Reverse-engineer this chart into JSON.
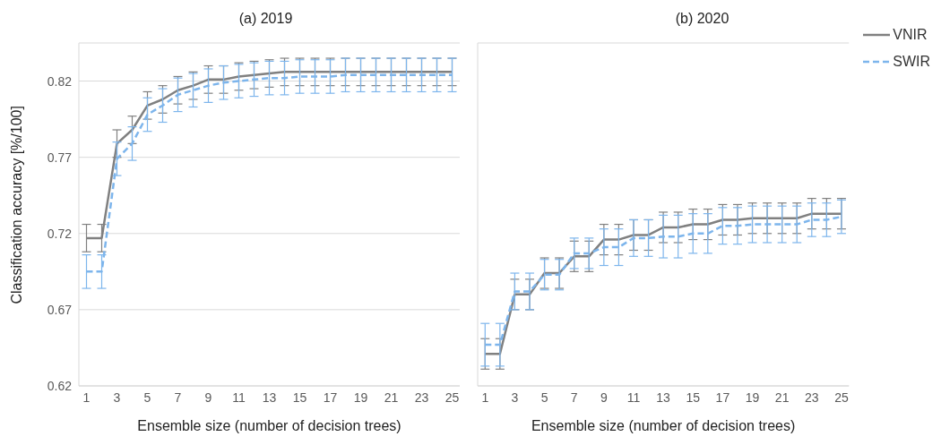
{
  "chart_data": [
    {
      "type": "line",
      "title": "(a) 2019",
      "xlabel": "Ensemble size (number of decision trees)",
      "ylabel": "Classification accuracy [%/100]",
      "x": [
        1,
        2,
        3,
        4,
        5,
        6,
        7,
        8,
        9,
        10,
        11,
        12,
        13,
        14,
        15,
        16,
        17,
        18,
        19,
        20,
        21,
        22,
        23,
        24,
        25
      ],
      "xlim": [
        0.5,
        25.5
      ],
      "xticks": [
        1,
        3,
        5,
        7,
        9,
        11,
        13,
        15,
        17,
        19,
        21,
        23,
        25
      ],
      "ylim": [
        0.62,
        0.845
      ],
      "yticks": [
        0.62,
        0.67,
        0.72,
        0.77,
        0.82
      ],
      "grid": "y",
      "legend": false,
      "marker": "none",
      "series": [
        {
          "color": "#808080",
          "line_style": "solid",
          "values": [
            0.717,
            0.717,
            0.779,
            0.788,
            0.804,
            0.808,
            0.814,
            0.817,
            0.821,
            0.821,
            0.823,
            0.824,
            0.825,
            0.826,
            0.826,
            0.826,
            0.826,
            0.826,
            0.826,
            0.826,
            0.826,
            0.826,
            0.826,
            0.826,
            0.826
          ],
          "errors": [
            0.009,
            0.009,
            0.009,
            0.009,
            0.009,
            0.009,
            0.009,
            0.009,
            0.009,
            0.009,
            0.009,
            0.009,
            0.009,
            0.009,
            0.009,
            0.009,
            0.009,
            0.009,
            0.009,
            0.009,
            0.009,
            0.009,
            0.009,
            0.009,
            0.009
          ]
        },
        {
          "color": "#7db5ec",
          "line_style": "dashed",
          "values": [
            0.695,
            0.695,
            0.769,
            0.779,
            0.798,
            0.804,
            0.811,
            0.814,
            0.817,
            0.819,
            0.82,
            0.821,
            0.822,
            0.822,
            0.823,
            0.823,
            0.823,
            0.824,
            0.824,
            0.824,
            0.824,
            0.824,
            0.824,
            0.824,
            0.824
          ],
          "errors": [
            0.011,
            0.011,
            0.011,
            0.011,
            0.011,
            0.011,
            0.011,
            0.011,
            0.011,
            0.011,
            0.011,
            0.011,
            0.011,
            0.011,
            0.011,
            0.011,
            0.011,
            0.011,
            0.011,
            0.011,
            0.011,
            0.011,
            0.011,
            0.011,
            0.011
          ]
        }
      ]
    },
    {
      "type": "line",
      "title": "(b) 2020",
      "xlabel": "Ensemble size (number of decision trees)",
      "x": [
        1,
        2,
        3,
        4,
        5,
        6,
        7,
        8,
        9,
        10,
        11,
        12,
        13,
        14,
        15,
        16,
        17,
        18,
        19,
        20,
        21,
        22,
        23,
        24,
        25
      ],
      "xlim": [
        0.5,
        25.5
      ],
      "xticks": [
        1,
        3,
        5,
        7,
        9,
        11,
        13,
        15,
        17,
        19,
        21,
        23,
        25
      ],
      "ylim": [
        0.62,
        0.845
      ],
      "yticks": [
        0.62,
        0.67,
        0.72,
        0.77,
        0.82
      ],
      "tick_labels": "x",
      "grid": "y",
      "legend": "top right",
      "marker": "none",
      "series": [
        {
          "name": "VNIR",
          "color": "#808080",
          "line_style": "solid",
          "values": [
            0.641,
            0.641,
            0.68,
            0.68,
            0.694,
            0.694,
            0.705,
            0.705,
            0.716,
            0.716,
            0.719,
            0.719,
            0.724,
            0.724,
            0.726,
            0.726,
            0.729,
            0.729,
            0.73,
            0.73,
            0.73,
            0.73,
            0.733,
            0.733,
            0.733
          ],
          "errors": [
            0.01,
            0.01,
            0.01,
            0.01,
            0.01,
            0.01,
            0.01,
            0.01,
            0.01,
            0.01,
            0.01,
            0.01,
            0.01,
            0.01,
            0.01,
            0.01,
            0.01,
            0.01,
            0.01,
            0.01,
            0.01,
            0.01,
            0.01,
            0.01,
            0.01
          ]
        },
        {
          "name": "SWIR",
          "color": "#7db5ec",
          "line_style": "dashed",
          "values": [
            0.647,
            0.647,
            0.682,
            0.682,
            0.693,
            0.693,
            0.707,
            0.707,
            0.711,
            0.711,
            0.717,
            0.717,
            0.718,
            0.718,
            0.72,
            0.72,
            0.725,
            0.725,
            0.726,
            0.726,
            0.726,
            0.726,
            0.729,
            0.729,
            0.731
          ],
          "errors": [
            0.014,
            0.014,
            0.012,
            0.012,
            0.01,
            0.01,
            0.01,
            0.01,
            0.012,
            0.012,
            0.012,
            0.012,
            0.014,
            0.014,
            0.013,
            0.013,
            0.012,
            0.012,
            0.012,
            0.012,
            0.012,
            0.012,
            0.011,
            0.011,
            0.011
          ]
        }
      ]
    }
  ]
}
